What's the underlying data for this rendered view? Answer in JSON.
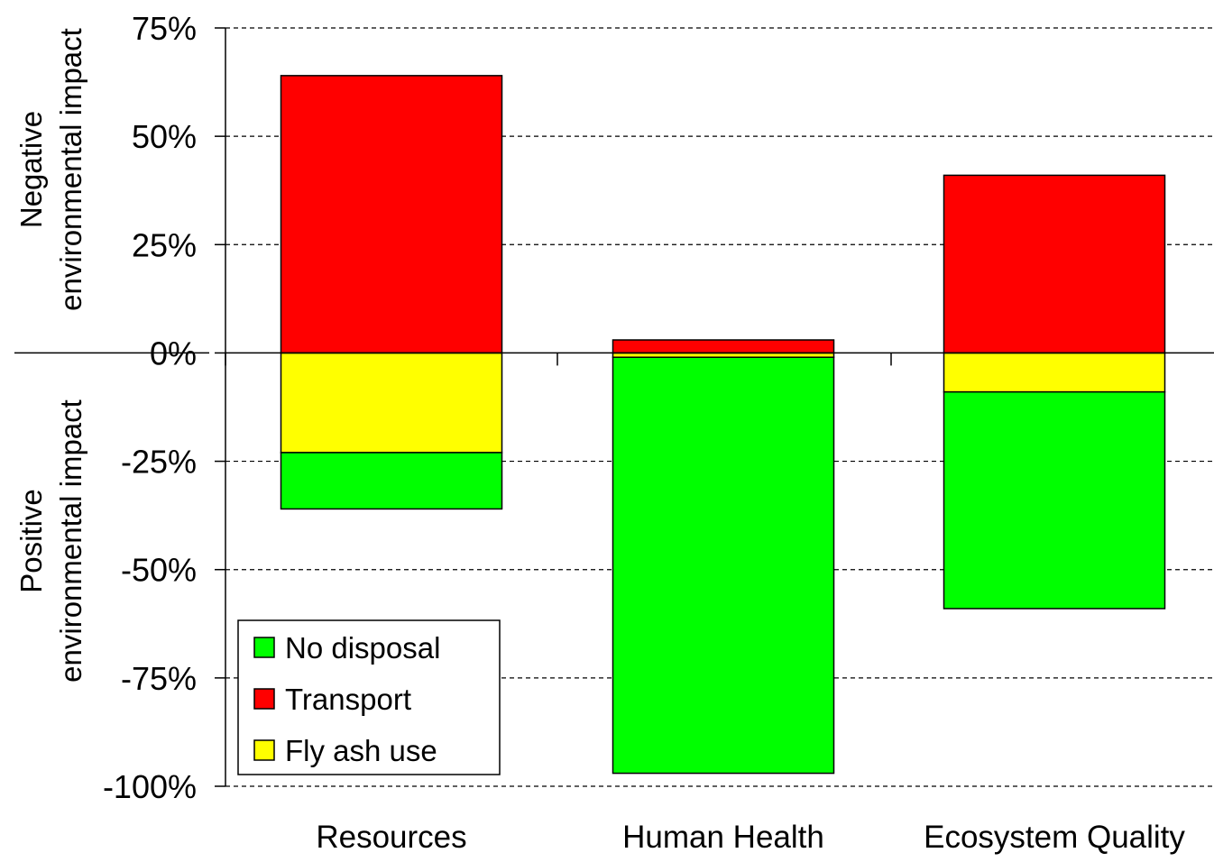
{
  "chart_data": {
    "type": "bar",
    "stacked": true,
    "categories": [
      "Resources",
      "Human Health",
      "Ecosystem Quality"
    ],
    "series": [
      {
        "name": "No disposal",
        "color": "#00FF00",
        "values": [
          -13,
          -96,
          -50
        ]
      },
      {
        "name": "Transport",
        "color": "#FF0000",
        "values": [
          64,
          3,
          41
        ]
      },
      {
        "name": "Fly ash use",
        "color": "#FFFF00",
        "values": [
          -23,
          -1,
          -9
        ]
      }
    ],
    "stack_order": [
      "Fly ash use",
      "No disposal",
      "Transport"
    ],
    "ylim": [
      -100,
      75
    ],
    "yticks": [
      {
        "value": 75,
        "label": "75%"
      },
      {
        "value": 50,
        "label": "50%"
      },
      {
        "value": 25,
        "label": "25%"
      },
      {
        "value": 0,
        "label": "0%"
      },
      {
        "value": -25,
        "label": "-25%"
      },
      {
        "value": -50,
        "label": "-50%"
      },
      {
        "value": -75,
        "label": "-75%"
      },
      {
        "value": -100,
        "label": "-100%"
      }
    ],
    "gridlines": "dashed",
    "legend_position": "bottom-left",
    "side_labels": {
      "negative": [
        "Negative",
        "environmental impact"
      ],
      "positive": [
        "Positive",
        "environmental impact"
      ]
    }
  }
}
